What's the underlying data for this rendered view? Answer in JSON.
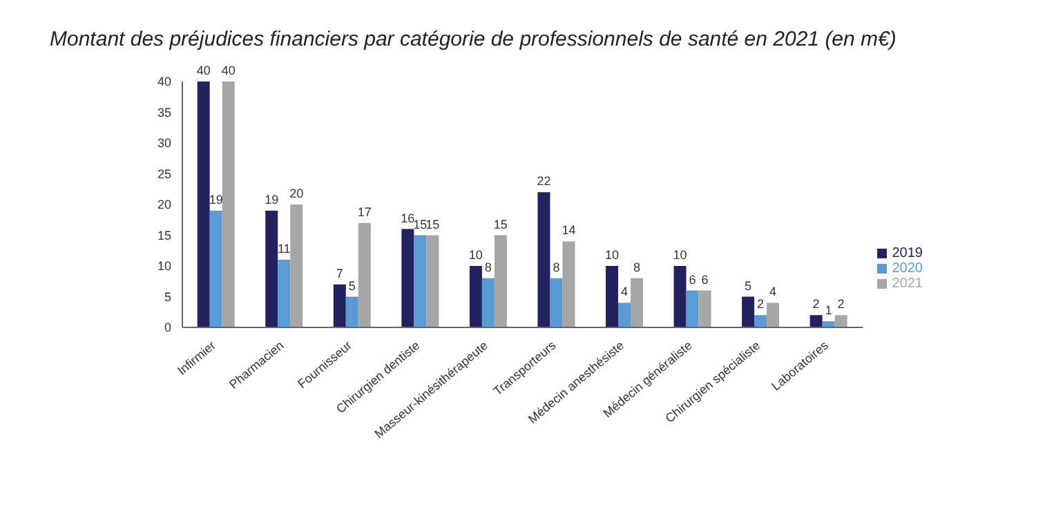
{
  "chart_data": {
    "type": "bar",
    "title": "Montant des préjudices financiers par catégorie de professionnels de santé en 2021 (en m€)",
    "categories": [
      "Infirmier",
      "Pharmacien",
      "Fournisseur",
      "Chirurgien dentiste",
      "Masseur-kinésithérapeute",
      "Transporteurs",
      "Médecin anesthésiste",
      "Médecin généraliste",
      "Chirurgien spécialiste",
      "Laboratoires"
    ],
    "series": [
      {
        "name": "2019",
        "color": "#22225e",
        "values": [
          40,
          19,
          7,
          16,
          10,
          22,
          10,
          10,
          5,
          2
        ]
      },
      {
        "name": "2020",
        "color": "#5b9bd5",
        "values": [
          19,
          11,
          5,
          15,
          8,
          8,
          4,
          6,
          2,
          1
        ]
      },
      {
        "name": "2021",
        "color": "#a6a6a6",
        "values": [
          40,
          20,
          17,
          15,
          15,
          14,
          8,
          6,
          4,
          2
        ]
      }
    ],
    "ylim": [
      0,
      40
    ],
    "yticks": [
      0,
      5,
      10,
      15,
      20,
      25,
      30,
      35,
      40
    ],
    "grid": false,
    "legend": "right",
    "data_labels": true
  }
}
